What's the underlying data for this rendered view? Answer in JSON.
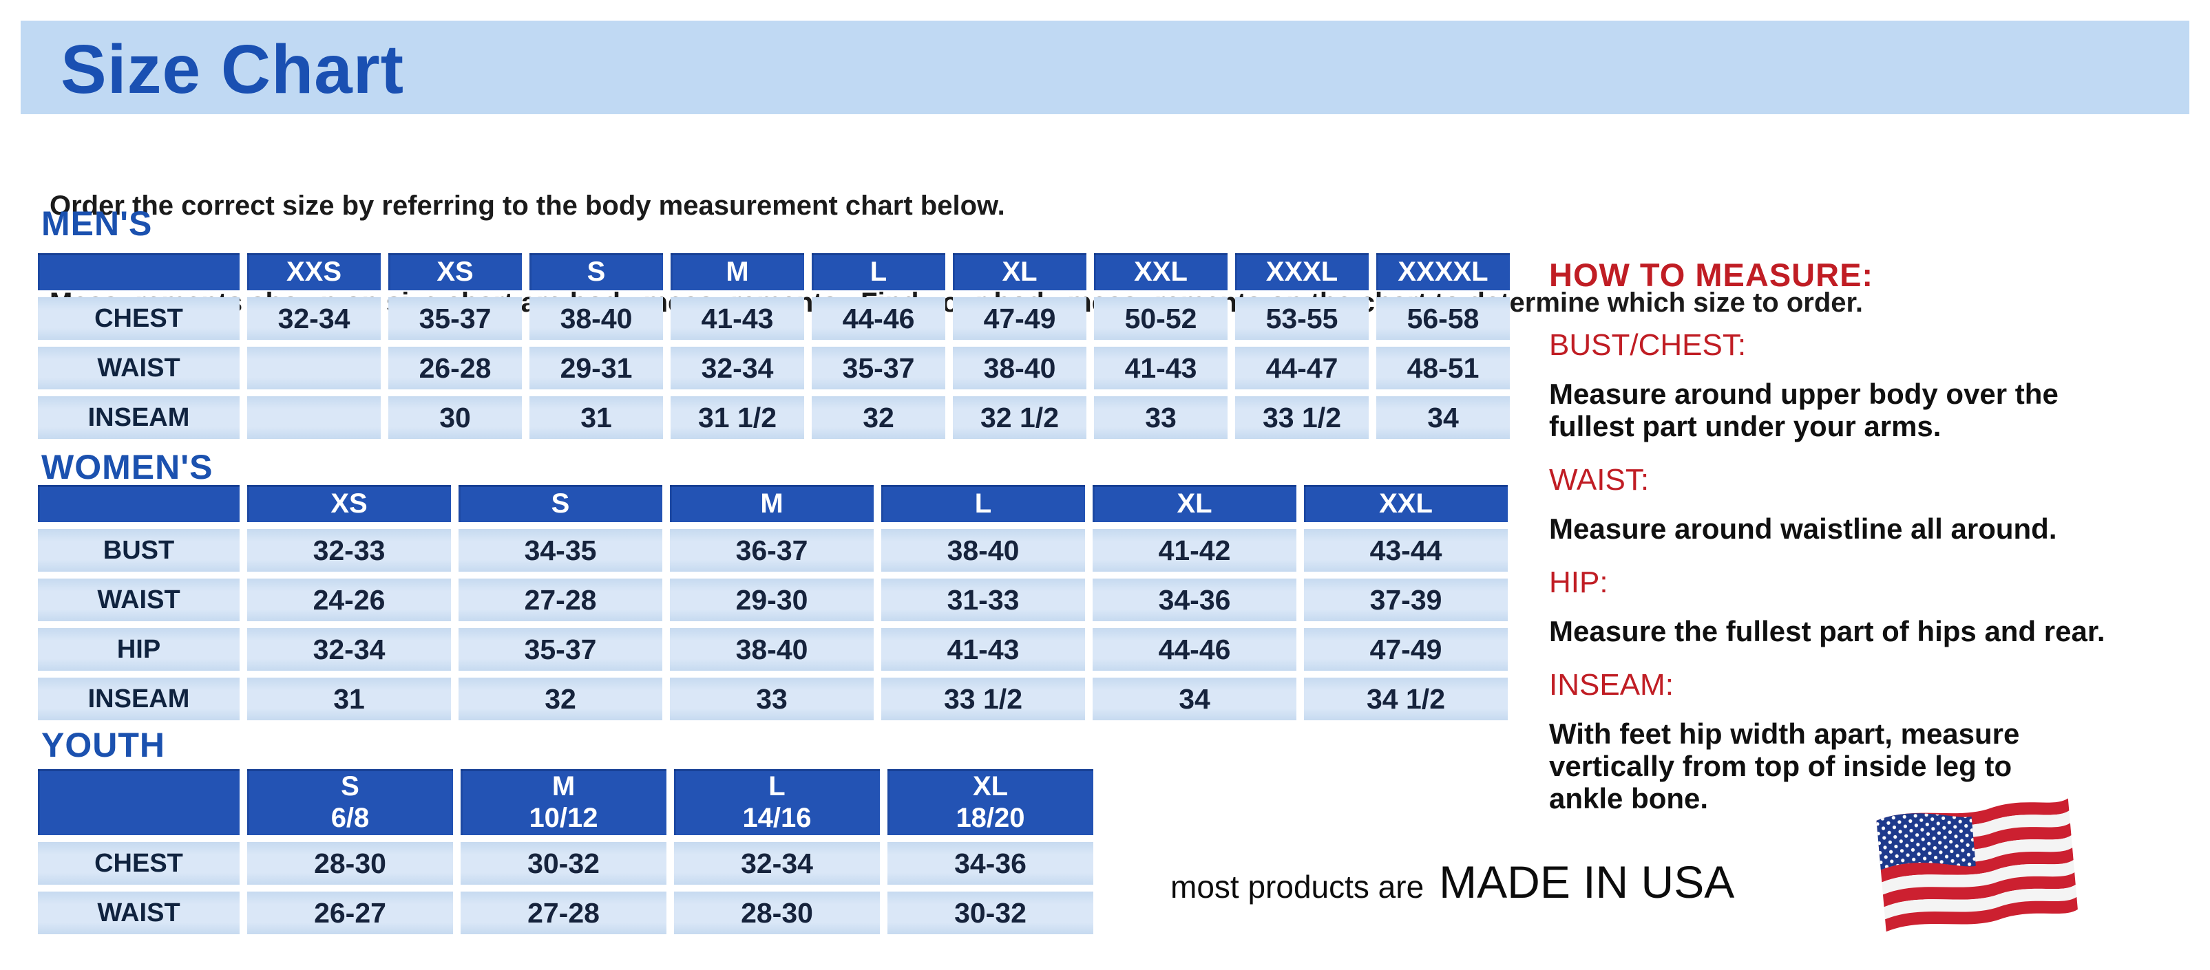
{
  "banner": {
    "title": "Size Chart"
  },
  "intro": {
    "line1": "Order the correct size by referring to the body measurement chart below.",
    "line2": "Measurements shown on size chart are body measurements.  Find your body measurements on the chart to determine which size to order."
  },
  "tables": {
    "mens": {
      "heading": "MEN'S",
      "columns": [
        {
          "label": ""
        },
        {
          "label": "XXS"
        },
        {
          "label": "XS"
        },
        {
          "label": "S"
        },
        {
          "label": "M"
        },
        {
          "label": "L"
        },
        {
          "label": "XL"
        },
        {
          "label": "XXL"
        },
        {
          "label": "XXXL"
        },
        {
          "label": "XXXXL"
        }
      ],
      "rows": [
        {
          "label": "CHEST",
          "values": [
            "32-34",
            "35-37",
            "38-40",
            "41-43",
            "44-46",
            "47-49",
            "50-52",
            "53-55",
            "56-58"
          ]
        },
        {
          "label": "WAIST",
          "values": [
            "",
            "26-28",
            "29-31",
            "32-34",
            "35-37",
            "38-40",
            "41-43",
            "44-47",
            "48-51"
          ]
        },
        {
          "label": "INSEAM",
          "values": [
            "",
            "30",
            "31",
            "31 1/2",
            "32",
            "32 1/2",
            "33",
            "33 1/2",
            "34"
          ]
        }
      ]
    },
    "womens": {
      "heading": "WOMEN'S",
      "columns": [
        {
          "label": ""
        },
        {
          "label": "XS"
        },
        {
          "label": "S"
        },
        {
          "label": "M"
        },
        {
          "label": "L"
        },
        {
          "label": "XL"
        },
        {
          "label": "XXL"
        }
      ],
      "rows": [
        {
          "label": "BUST",
          "values": [
            "32-33",
            "34-35",
            "36-37",
            "38-40",
            "41-42",
            "43-44"
          ]
        },
        {
          "label": "WAIST",
          "values": [
            "24-26",
            "27-28",
            "29-30",
            "31-33",
            "34-36",
            "37-39"
          ]
        },
        {
          "label": "HIP",
          "values": [
            "32-34",
            "35-37",
            "38-40",
            "41-43",
            "44-46",
            "47-49"
          ]
        },
        {
          "label": "INSEAM",
          "values": [
            "31",
            "32",
            "33",
            "33 1/2",
            "34",
            "34 1/2"
          ]
        }
      ]
    },
    "youth": {
      "heading": "YOUTH",
      "columns": [
        {
          "label": "",
          "sub": ""
        },
        {
          "label": "S",
          "sub": "6/8"
        },
        {
          "label": "M",
          "sub": "10/12"
        },
        {
          "label": "L",
          "sub": "14/16"
        },
        {
          "label": "XL",
          "sub": "18/20"
        }
      ],
      "rows": [
        {
          "label": "CHEST",
          "values": [
            "28-30",
            "30-32",
            "32-34",
            "34-36"
          ]
        },
        {
          "label": "WAIST",
          "values": [
            "26-27",
            "27-28",
            "28-30",
            "30-32"
          ]
        }
      ]
    }
  },
  "how_to_measure": {
    "heading": "HOW TO MEASURE:",
    "items": [
      {
        "label": "BUST/CHEST:",
        "text": "Measure around upper body over the\nfullest part under your arms."
      },
      {
        "label": "WAIST:",
        "text": "Measure around waistline all around."
      },
      {
        "label": "HIP:",
        "text": "Measure the fullest part of hips and rear."
      },
      {
        "label": "INSEAM:",
        "text": "With feet hip width apart, measure\nvertically from top of inside leg to\nankle bone."
      }
    ]
  },
  "footer": {
    "prefix": "most products are",
    "emphasis": "MADE IN USA",
    "flag_icon": "us-flag-icon"
  },
  "colors": {
    "banner_blue": "#c0d9f3",
    "title_blue": "#1a50b2",
    "header_blue": "#2353b4",
    "row_blue": "#d0e0f4",
    "accent_red": "#c01d24",
    "flag_red": "#cc2030",
    "flag_navy": "#1e3a8c"
  }
}
